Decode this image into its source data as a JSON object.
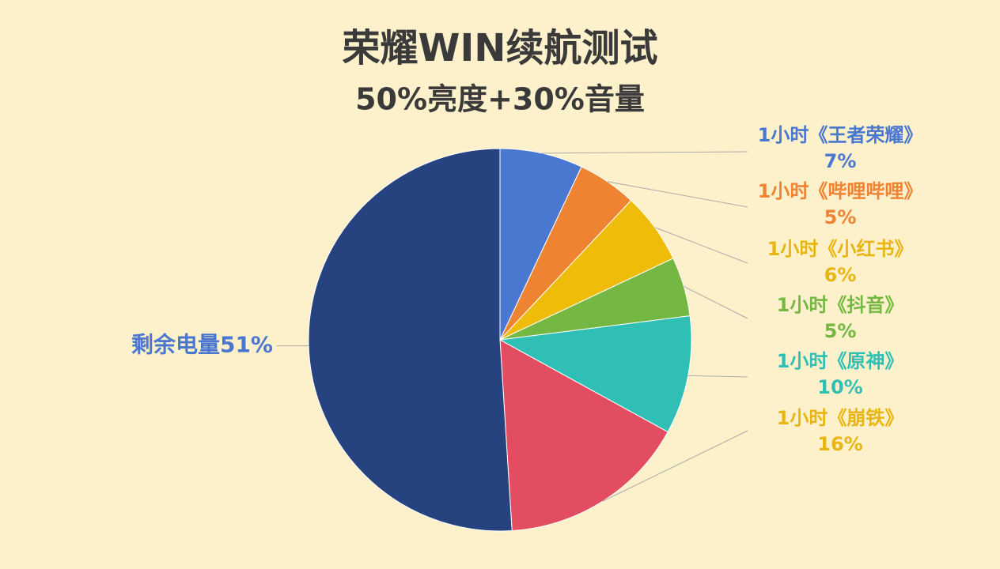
{
  "chart_data": {
    "type": "pie",
    "title": "荣耀WIN续航测试",
    "subtitle": "50%亮度+30%音量",
    "categories": [
      "1小时《王者荣耀》",
      "1小时《哔哩哔哩》",
      "1小时《小红书》",
      "1小时《抖音》",
      "1小时《原神》",
      "1小时《崩铁》",
      "剩余电量"
    ],
    "values": [
      7,
      5,
      6,
      5,
      10,
      16,
      51
    ],
    "value_labels": [
      "7%",
      "5%",
      "6%",
      "5%",
      "10%",
      "16%",
      "51%"
    ],
    "colors": [
      "#4a77cf",
      "#ee8431",
      "#f0bc0a",
      "#74b843",
      "#2fbfb5",
      "#e34d61",
      "#26437f"
    ],
    "label_colors": [
      "#4a77cf",
      "#ee8431",
      "#e9b512",
      "#74b843",
      "#2fbfb5",
      "#e9b512",
      "#4a77cf"
    ]
  }
}
